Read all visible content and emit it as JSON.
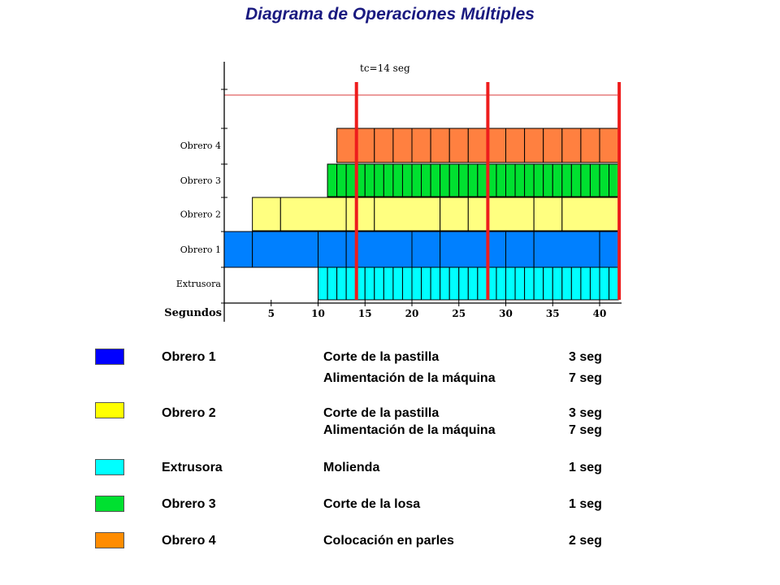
{
  "title": "Diagrama de Operaciones Múltiples",
  "chart_data": {
    "type": "gantt",
    "cycle_label": "tc=14 seg",
    "x_axis_label": "Segundos",
    "x_ticks": [
      "5",
      "10",
      "15",
      "20",
      "25",
      "30",
      "35",
      "40"
    ],
    "x_tick_values": [
      5,
      10,
      15,
      20,
      25,
      30,
      35,
      40
    ],
    "x_range": [
      0,
      42
    ],
    "cycle_markers": [
      14,
      28,
      42
    ],
    "rows": [
      {
        "label": "Obrero 4",
        "color": "#ff8040",
        "segments": [
          [
            12,
            14
          ],
          [
            14,
            16
          ],
          [
            16,
            18
          ],
          [
            18,
            20
          ],
          [
            20,
            22
          ],
          [
            22,
            24
          ],
          [
            24,
            26
          ],
          [
            26,
            28
          ],
          [
            28,
            30
          ],
          [
            30,
            32
          ],
          [
            32,
            34
          ],
          [
            34,
            36
          ],
          [
            36,
            38
          ],
          [
            38,
            40
          ],
          [
            40,
            42
          ]
        ]
      },
      {
        "label": "Obrero 3",
        "color": "#00e030",
        "segments": [
          [
            11,
            12
          ],
          [
            12,
            13
          ],
          [
            13,
            14
          ],
          [
            14,
            15
          ],
          [
            15,
            16
          ],
          [
            16,
            17
          ],
          [
            17,
            18
          ],
          [
            18,
            19
          ],
          [
            19,
            20
          ],
          [
            20,
            21
          ],
          [
            21,
            22
          ],
          [
            22,
            23
          ],
          [
            23,
            24
          ],
          [
            24,
            25
          ],
          [
            25,
            26
          ],
          [
            26,
            27
          ],
          [
            27,
            28
          ],
          [
            28,
            29
          ],
          [
            29,
            30
          ],
          [
            30,
            31
          ],
          [
            31,
            32
          ],
          [
            32,
            33
          ],
          [
            33,
            34
          ],
          [
            34,
            35
          ],
          [
            35,
            36
          ],
          [
            36,
            37
          ],
          [
            37,
            38
          ],
          [
            38,
            39
          ],
          [
            39,
            40
          ],
          [
            40,
            41
          ],
          [
            41,
            42
          ]
        ]
      },
      {
        "label": "Obrero 2",
        "color": "#ffff80",
        "segments": [
          [
            3,
            6
          ],
          [
            6,
            13
          ],
          [
            13,
            16
          ],
          [
            16,
            23
          ],
          [
            23,
            26
          ],
          [
            26,
            33
          ],
          [
            33,
            36
          ],
          [
            36,
            42
          ]
        ]
      },
      {
        "label": "Obrero 1",
        "color": "#0080ff",
        "segments": [
          [
            0,
            3
          ],
          [
            3,
            10
          ],
          [
            10,
            13
          ],
          [
            13,
            20
          ],
          [
            20,
            23
          ],
          [
            23,
            30
          ],
          [
            30,
            33
          ],
          [
            33,
            40
          ],
          [
            40,
            42
          ]
        ]
      },
      {
        "label": "Extrusora",
        "color": "#00ffff",
        "segments": [
          [
            10,
            11
          ],
          [
            11,
            12
          ],
          [
            12,
            13
          ],
          [
            13,
            14
          ],
          [
            14,
            15
          ],
          [
            15,
            16
          ],
          [
            16,
            17
          ],
          [
            17,
            18
          ],
          [
            18,
            19
          ],
          [
            19,
            20
          ],
          [
            20,
            21
          ],
          [
            21,
            22
          ],
          [
            22,
            23
          ],
          [
            23,
            24
          ],
          [
            24,
            25
          ],
          [
            25,
            26
          ],
          [
            26,
            27
          ],
          [
            27,
            28
          ],
          [
            28,
            29
          ],
          [
            29,
            30
          ],
          [
            30,
            31
          ],
          [
            31,
            32
          ],
          [
            32,
            33
          ],
          [
            33,
            34
          ],
          [
            34,
            35
          ],
          [
            35,
            36
          ],
          [
            36,
            37
          ],
          [
            37,
            38
          ],
          [
            38,
            39
          ],
          [
            39,
            40
          ],
          [
            40,
            41
          ],
          [
            41,
            42
          ]
        ]
      }
    ]
  },
  "legend": [
    {
      "color": "#0000ff",
      "who": "Obrero 1",
      "tasks": [
        {
          "name": "Corte de la pastilla",
          "time": "3 seg"
        },
        {
          "name": "Alimentación de la máquina",
          "time": "7 seg"
        }
      ]
    },
    {
      "color": "#ffff00",
      "who": "Obrero 2",
      "tasks": [
        {
          "name": "Corte de la pastilla",
          "time": "3 seg"
        },
        {
          "name": "Alimentación de la máquina",
          "time": "7 seg"
        }
      ]
    },
    {
      "color": "#00ffff",
      "who": "Extrusora",
      "tasks": [
        {
          "name": "Molienda",
          "time": "1 seg"
        }
      ]
    },
    {
      "color": "#00e030",
      "who": "Obrero 3",
      "tasks": [
        {
          "name": "Corte de la losa",
          "time": "1 seg"
        }
      ]
    },
    {
      "color": "#ff8c00",
      "who": "Obrero 4",
      "tasks": [
        {
          "name": "Colocación en parles",
          "time": "2 seg"
        }
      ]
    }
  ]
}
